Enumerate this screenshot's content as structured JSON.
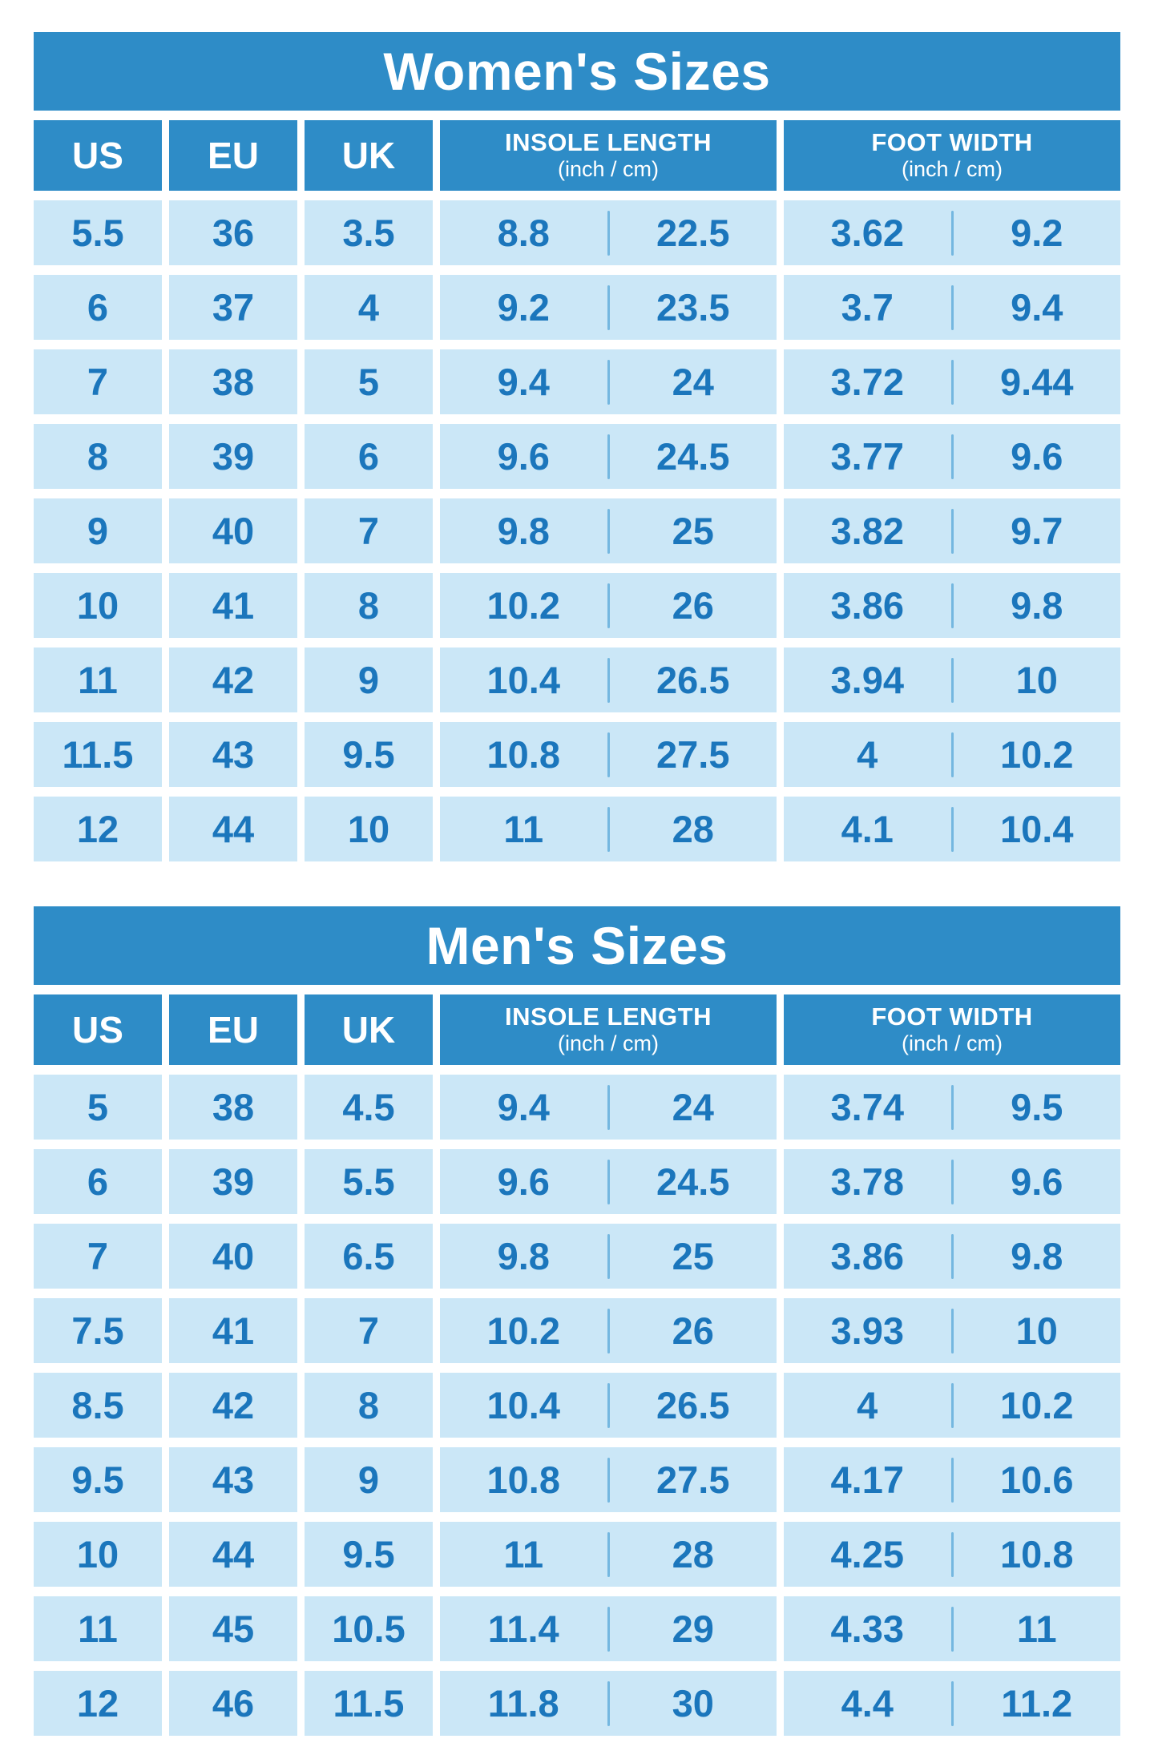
{
  "colors": {
    "header_blue": "#2E8CC7",
    "row_blue": "#CBE7F7",
    "text_blue": "#1B76BC",
    "divider_blue": "#74B7E0",
    "header_text": "#FFFFFF",
    "background": "#FFFFFF"
  },
  "chart_data": [
    {
      "type": "table",
      "title": "Women's Sizes",
      "headers": {
        "us": "US",
        "eu": "EU",
        "uk": "UK",
        "insole_title": "INSOLE LENGTH",
        "insole_sub": "(inch / cm)",
        "width_title": "FOOT WIDTH",
        "width_sub": "(inch / cm)"
      },
      "rows": [
        {
          "us": "5.5",
          "eu": "36",
          "uk": "3.5",
          "insole_in": "8.8",
          "insole_cm": "22.5",
          "width_in": "3.62",
          "width_cm": "9.2"
        },
        {
          "us": "6",
          "eu": "37",
          "uk": "4",
          "insole_in": "9.2",
          "insole_cm": "23.5",
          "width_in": "3.7",
          "width_cm": "9.4"
        },
        {
          "us": "7",
          "eu": "38",
          "uk": "5",
          "insole_in": "9.4",
          "insole_cm": "24",
          "width_in": "3.72",
          "width_cm": "9.44"
        },
        {
          "us": "8",
          "eu": "39",
          "uk": "6",
          "insole_in": "9.6",
          "insole_cm": "24.5",
          "width_in": "3.77",
          "width_cm": "9.6"
        },
        {
          "us": "9",
          "eu": "40",
          "uk": "7",
          "insole_in": "9.8",
          "insole_cm": "25",
          "width_in": "3.82",
          "width_cm": "9.7"
        },
        {
          "us": "10",
          "eu": "41",
          "uk": "8",
          "insole_in": "10.2",
          "insole_cm": "26",
          "width_in": "3.86",
          "width_cm": "9.8"
        },
        {
          "us": "11",
          "eu": "42",
          "uk": "9",
          "insole_in": "10.4",
          "insole_cm": "26.5",
          "width_in": "3.94",
          "width_cm": "10"
        },
        {
          "us": "11.5",
          "eu": "43",
          "uk": "9.5",
          "insole_in": "10.8",
          "insole_cm": "27.5",
          "width_in": "4",
          "width_cm": "10.2"
        },
        {
          "us": "12",
          "eu": "44",
          "uk": "10",
          "insole_in": "11",
          "insole_cm": "28",
          "width_in": "4.1",
          "width_cm": "10.4"
        }
      ]
    },
    {
      "type": "table",
      "title": "Men's Sizes",
      "headers": {
        "us": "US",
        "eu": "EU",
        "uk": "UK",
        "insole_title": "INSOLE LENGTH",
        "insole_sub": "(inch / cm)",
        "width_title": "FOOT WIDTH",
        "width_sub": "(inch / cm)"
      },
      "rows": [
        {
          "us": "5",
          "eu": "38",
          "uk": "4.5",
          "insole_in": "9.4",
          "insole_cm": "24",
          "width_in": "3.74",
          "width_cm": "9.5"
        },
        {
          "us": "6",
          "eu": "39",
          "uk": "5.5",
          "insole_in": "9.6",
          "insole_cm": "24.5",
          "width_in": "3.78",
          "width_cm": "9.6"
        },
        {
          "us": "7",
          "eu": "40",
          "uk": "6.5",
          "insole_in": "9.8",
          "insole_cm": "25",
          "width_in": "3.86",
          "width_cm": "9.8"
        },
        {
          "us": "7.5",
          "eu": "41",
          "uk": "7",
          "insole_in": "10.2",
          "insole_cm": "26",
          "width_in": "3.93",
          "width_cm": "10"
        },
        {
          "us": "8.5",
          "eu": "42",
          "uk": "8",
          "insole_in": "10.4",
          "insole_cm": "26.5",
          "width_in": "4",
          "width_cm": "10.2"
        },
        {
          "us": "9.5",
          "eu": "43",
          "uk": "9",
          "insole_in": "10.8",
          "insole_cm": "27.5",
          "width_in": "4.17",
          "width_cm": "10.6"
        },
        {
          "us": "10",
          "eu": "44",
          "uk": "9.5",
          "insole_in": "11",
          "insole_cm": "28",
          "width_in": "4.25",
          "width_cm": "10.8"
        },
        {
          "us": "11",
          "eu": "45",
          "uk": "10.5",
          "insole_in": "11.4",
          "insole_cm": "29",
          "width_in": "4.33",
          "width_cm": "11"
        },
        {
          "us": "12",
          "eu": "46",
          "uk": "11.5",
          "insole_in": "11.8",
          "insole_cm": "30",
          "width_in": "4.4",
          "width_cm": "11.2"
        }
      ]
    }
  ]
}
